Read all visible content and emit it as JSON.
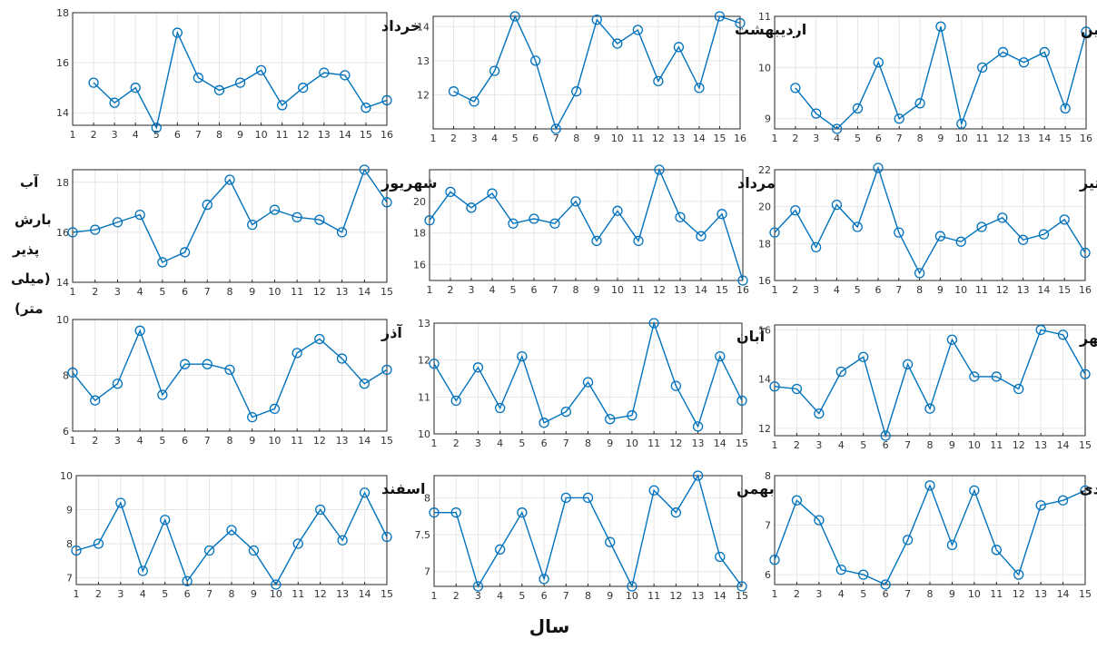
{
  "ylabel_lines": [
    "آب",
    "بارش",
    "پذیر",
    "(میلی",
    "متر)"
  ],
  "xlabel": "سال",
  "colors": {
    "line": "#0072BD",
    "grid": "#e6e6e6",
    "axis": "#262626"
  },
  "chart_data": [
    {
      "type": "line",
      "title": "خرداد",
      "x": [
        1,
        2,
        3,
        4,
        5,
        6,
        7,
        8,
        9,
        10,
        11,
        12,
        13,
        14,
        15,
        16
      ],
      "y": [
        null,
        15.2,
        14.4,
        15.0,
        13.4,
        17.2,
        15.4,
        14.9,
        15.2,
        15.7,
        14.3,
        15.0,
        15.6,
        15.5,
        14.2,
        14.5
      ],
      "xlim": [
        1,
        16
      ],
      "ylim": [
        13.5,
        18
      ],
      "yticks": [
        14,
        16,
        18
      ],
      "grid": true
    },
    {
      "type": "line",
      "title": "اردیبهشت",
      "x": [
        1,
        2,
        3,
        4,
        5,
        6,
        7,
        8,
        9,
        10,
        11,
        12,
        13,
        14,
        15,
        16
      ],
      "y": [
        null,
        12.1,
        11.8,
        12.7,
        14.3,
        13.0,
        11.0,
        12.1,
        14.2,
        13.5,
        13.9,
        12.4,
        13.4,
        12.2,
        14.3,
        14.1
      ],
      "xlim": [
        1,
        16
      ],
      "ylim": [
        11,
        14.3
      ],
      "yticks": [
        12,
        13,
        14
      ],
      "grid": true
    },
    {
      "type": "line",
      "title": "فروردین",
      "x": [
        1,
        2,
        3,
        4,
        5,
        6,
        7,
        8,
        9,
        10,
        11,
        12,
        13,
        14,
        15,
        16
      ],
      "y": [
        null,
        9.6,
        9.1,
        8.8,
        9.2,
        10.1,
        9.0,
        9.3,
        10.8,
        8.9,
        10.0,
        10.3,
        10.1,
        10.3,
        9.2,
        10.7
      ],
      "xlim": [
        1,
        16
      ],
      "ylim": [
        8.8,
        11
      ],
      "yticks": [
        9,
        10,
        11
      ],
      "grid": true
    },
    {
      "type": "line",
      "title": "شهریور",
      "x": [
        1,
        2,
        3,
        4,
        5,
        6,
        7,
        8,
        9,
        10,
        11,
        12,
        13,
        14,
        15
      ],
      "y": [
        16.0,
        16.1,
        16.4,
        16.7,
        14.8,
        15.2,
        17.1,
        18.1,
        16.3,
        16.9,
        16.6,
        16.5,
        16.0,
        18.5,
        17.2
      ],
      "xlim": [
        1,
        15
      ],
      "ylim": [
        14,
        18.5
      ],
      "yticks": [
        14,
        16,
        18
      ],
      "grid": true
    },
    {
      "type": "line",
      "title": "مرداد",
      "x": [
        1,
        2,
        3,
        4,
        5,
        6,
        7,
        8,
        9,
        10,
        11,
        12,
        13,
        14,
        15,
        16
      ],
      "y": [
        18.8,
        20.6,
        19.6,
        20.5,
        18.6,
        18.9,
        18.6,
        20.0,
        17.5,
        19.4,
        17.5,
        22.0,
        19.0,
        17.8,
        19.2,
        15.0
      ],
      "xlim": [
        1,
        16
      ],
      "ylim": [
        15,
        22
      ],
      "yticks": [
        16,
        18,
        20
      ],
      "grid": true
    },
    {
      "type": "line",
      "title": "تیر",
      "x": [
        1,
        2,
        3,
        4,
        5,
        6,
        7,
        8,
        9,
        10,
        11,
        12,
        13,
        14,
        15,
        16
      ],
      "y": [
        18.6,
        19.8,
        17.8,
        20.1,
        18.9,
        22.1,
        18.6,
        16.4,
        18.4,
        18.1,
        18.9,
        19.4,
        18.2,
        18.5,
        19.3,
        17.5
      ],
      "xlim": [
        1,
        16
      ],
      "ylim": [
        16,
        22
      ],
      "yticks": [
        16,
        18,
        20,
        22
      ],
      "grid": true
    },
    {
      "type": "line",
      "title": "آذر",
      "x": [
        1,
        2,
        3,
        4,
        5,
        6,
        7,
        8,
        9,
        10,
        11,
        12,
        13,
        14,
        15
      ],
      "y": [
        8.1,
        7.1,
        7.7,
        9.6,
        7.3,
        8.4,
        8.4,
        8.2,
        6.5,
        6.8,
        8.8,
        9.3,
        8.6,
        7.7,
        8.2
      ],
      "xlim": [
        1,
        15
      ],
      "ylim": [
        6,
        10
      ],
      "yticks": [
        6,
        8,
        10
      ],
      "grid": true
    },
    {
      "type": "line",
      "title": "آبان",
      "x": [
        1,
        2,
        3,
        4,
        5,
        6,
        7,
        8,
        9,
        10,
        11,
        12,
        13,
        14,
        15
      ],
      "y": [
        11.9,
        10.9,
        11.8,
        10.7,
        12.1,
        10.3,
        10.6,
        11.4,
        10.4,
        10.5,
        13.0,
        11.3,
        10.2,
        12.1,
        10.9
      ],
      "xlim": [
        1,
        15
      ],
      "ylim": [
        10,
        13
      ],
      "yticks": [
        10,
        11,
        12,
        13
      ],
      "grid": true
    },
    {
      "type": "line",
      "title": "مهر",
      "x": [
        1,
        2,
        3,
        4,
        5,
        6,
        7,
        8,
        9,
        10,
        11,
        12,
        13,
        14,
        15
      ],
      "y": [
        13.7,
        13.6,
        12.6,
        14.3,
        14.9,
        11.7,
        14.6,
        12.8,
        15.6,
        14.1,
        14.1,
        13.6,
        16.0,
        15.8,
        14.2
      ],
      "xlim": [
        1,
        15
      ],
      "ylim": [
        11.7,
        16.2
      ],
      "yticks": [
        12,
        14,
        16
      ],
      "grid": true
    },
    {
      "type": "line",
      "title": "اسفند",
      "x": [
        1,
        2,
        3,
        4,
        5,
        6,
        7,
        8,
        9,
        10,
        11,
        12,
        13,
        14,
        15
      ],
      "y": [
        7.8,
        8.0,
        9.2,
        7.2,
        8.7,
        6.9,
        7.8,
        8.4,
        7.8,
        6.8,
        8.0,
        9.0,
        8.1,
        9.5,
        8.2
      ],
      "xlim": [
        1,
        15
      ],
      "ylim": [
        6.8,
        10
      ],
      "yticks": [
        7,
        8,
        9,
        10
      ],
      "grid": true
    },
    {
      "type": "line",
      "title": "بهمن",
      "x": [
        1,
        2,
        3,
        4,
        5,
        6,
        7,
        8,
        9,
        10,
        11,
        12,
        13,
        14,
        15
      ],
      "y": [
        7.8,
        7.8,
        6.8,
        7.3,
        7.8,
        6.9,
        8.0,
        8.0,
        7.4,
        6.8,
        8.1,
        7.8,
        8.3,
        7.2,
        6.8
      ],
      "xlim": [
        1,
        15
      ],
      "ylim": [
        6.8,
        8.3
      ],
      "yticks": [
        7,
        7.5,
        8
      ],
      "ytick_labels": [
        "7",
        "7.5",
        "8"
      ],
      "grid": true
    },
    {
      "type": "line",
      "title": "دی",
      "x": [
        1,
        2,
        3,
        4,
        5,
        6,
        7,
        8,
        9,
        10,
        11,
        12,
        13,
        14,
        15
      ],
      "y": [
        6.3,
        7.5,
        7.1,
        6.1,
        6.0,
        5.8,
        6.7,
        7.8,
        6.6,
        7.7,
        6.5,
        6.0,
        7.4,
        7.5,
        7.7
      ],
      "xlim": [
        1,
        15
      ],
      "ylim": [
        5.8,
        8
      ],
      "yticks": [
        6,
        7,
        8
      ],
      "grid": true
    }
  ]
}
